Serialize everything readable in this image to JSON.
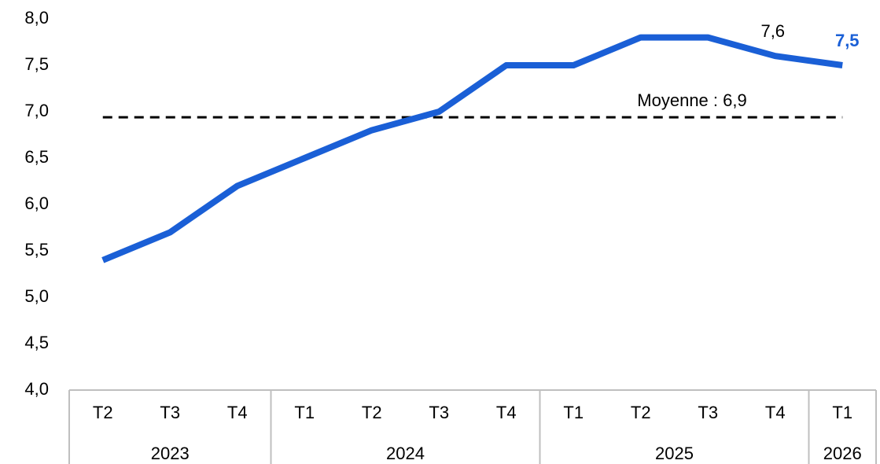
{
  "chart_data": {
    "type": "line",
    "groups": [
      {
        "name": "2023",
        "categories": [
          "T2",
          "T3",
          "T4"
        ]
      },
      {
        "name": "2024",
        "categories": [
          "T1",
          "T2",
          "T3",
          "T4"
        ]
      },
      {
        "name": "2025",
        "categories": [
          "T1",
          "T2",
          "T3",
          "T4"
        ]
      },
      {
        "name": "2026",
        "categories": [
          "T1"
        ]
      }
    ],
    "values": [
      5.4,
      5.7,
      6.2,
      6.5,
      6.8,
      7.0,
      7.5,
      7.5,
      7.8,
      7.8,
      7.6,
      7.5
    ],
    "value_labels": [
      null,
      null,
      null,
      null,
      null,
      null,
      null,
      null,
      null,
      null,
      "7,6",
      "7,5"
    ],
    "color": "#1a5fd6",
    "mean": {
      "value": 6.94,
      "label": "Moyenne : 6,9"
    },
    "ylim": [
      4.0,
      8.0
    ],
    "yticks": [
      {
        "value": 4.0,
        "label": "4,0"
      },
      {
        "value": 4.5,
        "label": "4,5"
      },
      {
        "value": 5.0,
        "label": "5,0"
      },
      {
        "value": 5.5,
        "label": "5,5"
      },
      {
        "value": 6.0,
        "label": "6,0"
      },
      {
        "value": 6.5,
        "label": "6,5"
      },
      {
        "value": 7.0,
        "label": "7,0"
      },
      {
        "value": 7.5,
        "label": "7,5"
      },
      {
        "value": 8.0,
        "label": "8,0"
      }
    ]
  }
}
